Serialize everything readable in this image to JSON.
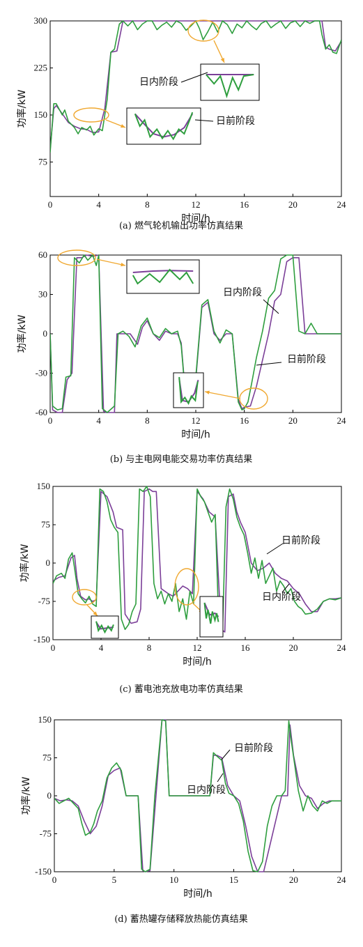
{
  "colors": {
    "day_ahead": "#7b3f98",
    "intraday": "#2e9e3e",
    "highlight": "#f0a830",
    "frame": "#000000"
  },
  "chart_data": [
    {
      "type": "line",
      "caption": "(a) 燃气轮机输出功率仿真结果",
      "xlabel": "时间/h",
      "ylabel": "功率/kW",
      "xlim": [
        0,
        24
      ],
      "ylim": [
        20,
        300
      ],
      "xticks": [
        "0",
        "4",
        "8",
        "12",
        "16",
        "20",
        "24"
      ],
      "yticks": [
        "75",
        "150",
        "225",
        "300"
      ],
      "annotations": {
        "intraday": "日内阶段",
        "day_ahead": "日前阶段"
      },
      "series": [
        {
          "key": "day_ahead",
          "x": [
            0,
            0.3,
            0.5,
            1,
            1.5,
            2,
            2.5,
            3,
            3.5,
            4,
            4.5,
            5,
            5.5,
            6,
            7,
            8,
            9,
            10,
            11,
            12,
            13,
            14,
            15,
            16,
            17,
            18,
            19,
            20,
            21,
            22,
            22.4,
            22.7,
            23,
            23.5,
            24
          ],
          "y": [
            95,
            160,
            165,
            152,
            138,
            132,
            128,
            127,
            122,
            123,
            160,
            250,
            252,
            300,
            300,
            300,
            300,
            300,
            300,
            300,
            300,
            300,
            300,
            300,
            300,
            300,
            300,
            300,
            300,
            300,
            300,
            258,
            255,
            252,
            268
          ]
        },
        {
          "key": "intraday",
          "x": [
            0,
            0.3,
            0.5,
            1,
            1.2,
            1.5,
            2,
            2.3,
            2.6,
            3,
            3.3,
            3.6,
            4,
            4.3,
            4.7,
            5,
            5.3,
            5.7,
            6,
            6.4,
            6.8,
            7.2,
            7.6,
            8,
            8.4,
            8.8,
            9.2,
            9.6,
            10,
            10.4,
            10.8,
            11.2,
            11.6,
            12,
            12.3,
            12.6,
            13,
            13.4,
            13.8,
            14.2,
            14.6,
            15,
            15.4,
            15.8,
            16.2,
            16.6,
            17,
            17.4,
            17.8,
            18.2,
            18.6,
            19,
            19.4,
            19.8,
            20.2,
            20.6,
            21,
            21.4,
            21.8,
            22.2,
            22.4,
            22.7,
            23,
            23.3,
            23.6,
            24
          ],
          "y": [
            90,
            168,
            168,
            150,
            158,
            140,
            130,
            120,
            130,
            126,
            132,
            118,
            128,
            125,
            175,
            250,
            255,
            295,
            300,
            292,
            300,
            286,
            295,
            300,
            300,
            286,
            293,
            298,
            290,
            300,
            296,
            285,
            292,
            300,
            288,
            270,
            283,
            298,
            282,
            300,
            294,
            280,
            295,
            289,
            300,
            292,
            286,
            296,
            300,
            289,
            295,
            300,
            288,
            297,
            300,
            291,
            300,
            296,
            300,
            300,
            278,
            255,
            262,
            250,
            248,
            270
          ]
        }
      ]
    },
    {
      "type": "line",
      "caption": "(b) 与主电网电能交易功率仿真结果",
      "xlabel": "时间/h",
      "ylabel": "功率/kW",
      "xlim": [
        0,
        24
      ],
      "ylim": [
        -60,
        60
      ],
      "xticks": [
        "0",
        "4",
        "8",
        "12",
        "16",
        "20",
        "24"
      ],
      "yticks": [
        "-60",
        "-30",
        "0",
        "30",
        "60"
      ],
      "annotations": {
        "intraday": "日内阶段",
        "day_ahead": "日前阶段"
      },
      "series": [
        {
          "key": "day_ahead",
          "x": [
            0,
            0.2,
            0.6,
            1,
            1.4,
            1.8,
            2.2,
            2.6,
            3,
            3.5,
            4,
            4.4,
            4.6,
            5.3,
            5.5,
            6,
            6.6,
            7.2,
            7.6,
            8,
            8.5,
            9,
            9.5,
            10,
            10.5,
            10.8,
            11,
            11.3,
            11.6,
            12,
            12.5,
            13,
            13.5,
            14,
            14.5,
            15,
            15.5,
            15.8,
            16,
            16.5,
            17,
            17.5,
            18,
            18.5,
            19,
            19.5,
            20,
            20.5,
            21,
            21.5,
            22,
            22.5,
            23,
            24
          ],
          "y": [
            0,
            -58,
            -60,
            -60,
            -35,
            -30,
            58,
            58,
            60,
            59,
            60,
            -59,
            -60,
            -60,
            0,
            0,
            0,
            -8,
            5,
            10,
            0,
            -5,
            2,
            0,
            0,
            -7,
            -30,
            -50,
            -52,
            -35,
            20,
            24,
            0,
            -5,
            0,
            0,
            -50,
            -57,
            -56,
            -55,
            -40,
            -20,
            0,
            25,
            30,
            55,
            58,
            58,
            0,
            0,
            0,
            0,
            0,
            0
          ]
        },
        {
          "key": "intraday",
          "x": [
            0,
            0.2,
            0.6,
            1,
            1.3,
            1.7,
            2,
            2.4,
            2.8,
            3.1,
            3.5,
            3.8,
            4,
            4.3,
            4.7,
            5.3,
            5.6,
            6,
            6.5,
            7,
            7.5,
            8,
            8.5,
            9,
            9.5,
            10,
            10.5,
            10.8,
            11,
            11.3,
            11.7,
            12,
            12.5,
            13,
            13.5,
            14,
            14.5,
            15,
            15.5,
            15.8,
            16,
            16.3,
            16.6,
            17,
            17.5,
            18,
            18.5,
            19,
            19.5,
            20,
            20.5,
            21,
            21.5,
            22,
            22.5,
            23,
            24
          ],
          "y": [
            0,
            -55,
            -58,
            -57,
            -33,
            -32,
            58,
            54,
            60,
            56,
            60,
            52,
            60,
            -57,
            -60,
            -55,
            0,
            2,
            -2,
            -10,
            6,
            12,
            0,
            -3,
            4,
            0,
            2,
            -9,
            -31,
            -52,
            -54,
            -33,
            22,
            26,
            2,
            -7,
            3,
            0,
            -52,
            -58,
            -57,
            -52,
            -38,
            -18,
            2,
            27,
            33,
            57,
            60,
            60,
            2,
            0,
            8,
            0,
            0,
            0,
            0
          ]
        }
      ]
    },
    {
      "type": "line",
      "caption": "(c) 蓄电池充放电功率仿真结果",
      "xlabel": "时间/h",
      "ylabel": "功率/kW",
      "xlim": [
        0,
        24
      ],
      "ylim": [
        -150,
        150
      ],
      "xticks": [
        "0",
        "4",
        "8",
        "12",
        "16",
        "20",
        "24"
      ],
      "yticks": [
        "-150",
        "-75",
        "0",
        "75",
        "150"
      ],
      "annotations": {
        "day_ahead": "日前阶段",
        "intraday": "日内阶段"
      },
      "series": [
        {
          "key": "day_ahead",
          "x": [
            0,
            0.5,
            1,
            1.5,
            1.8,
            2,
            2.3,
            2.7,
            3,
            3.3,
            3.6,
            4,
            4.5,
            5,
            5.3,
            5.8,
            6,
            6.5,
            7,
            7.3,
            7.6,
            8,
            8.3,
            8.6,
            9,
            9.3,
            9.6,
            10,
            10.4,
            10.8,
            11.2,
            11.6,
            12,
            12.5,
            13,
            13.5,
            14,
            14.3,
            14.6,
            15,
            15.3,
            15.6,
            16,
            16.5,
            17,
            17.5,
            18,
            18.5,
            19,
            19.5,
            20,
            20.5,
            21,
            21.5,
            22,
            22.5,
            23,
            23.5,
            24
          ],
          "y": [
            -35,
            -28,
            -25,
            10,
            15,
            -30,
            -65,
            -72,
            -70,
            -75,
            -72,
            140,
            130,
            100,
            70,
            65,
            -100,
            -118,
            -115,
            -90,
            140,
            145,
            140,
            140,
            -50,
            -55,
            -60,
            -65,
            -55,
            -45,
            -50,
            -60,
            140,
            125,
            100,
            90,
            -130,
            -135,
            130,
            135,
            100,
            80,
            60,
            0,
            -15,
            -10,
            0,
            -20,
            -30,
            -35,
            -50,
            -60,
            -80,
            -95,
            -95,
            -75,
            -70,
            -70,
            -68
          ]
        },
        {
          "key": "intraday",
          "x": [
            0,
            0.3,
            0.7,
            1,
            1.3,
            1.6,
            1.8,
            2.1,
            2.4,
            2.7,
            3,
            3.3,
            3.6,
            3.9,
            4.2,
            4.5,
            4.8,
            5.1,
            5.4,
            5.7,
            6,
            6.3,
            6.6,
            6.9,
            7.2,
            7.5,
            7.8,
            8.1,
            8.4,
            8.7,
            9,
            9.3,
            9.6,
            9.9,
            10.2,
            10.5,
            10.8,
            11.1,
            11.4,
            11.7,
            12,
            12.3,
            12.6,
            12.9,
            13.2,
            13.5,
            13.8,
            14.1,
            14.4,
            14.7,
            15,
            15.3,
            15.6,
            15.9,
            16.2,
            16.5,
            16.8,
            17.1,
            17.4,
            17.7,
            18,
            18.3,
            18.6,
            18.9,
            19.2,
            19.5,
            19.8,
            20.1,
            20.4,
            20.7,
            21,
            21.5,
            22,
            22.5,
            23,
            23.5,
            24
          ],
          "y": [
            -40,
            -25,
            -20,
            -30,
            8,
            20,
            -10,
            -60,
            -70,
            -78,
            -65,
            -80,
            -85,
            145,
            140,
            120,
            85,
            70,
            60,
            -110,
            -130,
            -120,
            -95,
            -80,
            145,
            140,
            150,
            130,
            -40,
            -70,
            -55,
            -80,
            -60,
            -75,
            -40,
            -95,
            -70,
            -110,
            -55,
            -80,
            145,
            130,
            120,
            100,
            80,
            95,
            -125,
            -140,
            110,
            145,
            125,
            90,
            70,
            55,
            20,
            -20,
            10,
            -30,
            5,
            -40,
            -25,
            -10,
            -55,
            -35,
            -45,
            -60,
            -50,
            -75,
            -85,
            -90,
            -100,
            -98,
            -90,
            -75,
            -70,
            -72,
            -68
          ]
        }
      ]
    },
    {
      "type": "line",
      "caption": "(d) 蓄热罐存储释放热能仿真结果",
      "xlabel": "时间/h",
      "ylabel": "功率/kW",
      "xlim": [
        0,
        24
      ],
      "ylim": [
        -150,
        150
      ],
      "xticks": [
        "0",
        "5",
        "10",
        "15",
        "20",
        "24"
      ],
      "yticks": [
        "-150",
        "-75",
        "0",
        "75",
        "150"
      ],
      "annotations": {
        "day_ahead": "日前阶段",
        "intraday": "日内阶段"
      },
      "series": [
        {
          "key": "day_ahead",
          "x": [
            0,
            0.5,
            1,
            1.5,
            2,
            2.5,
            3,
            3.5,
            4,
            4.5,
            5,
            5.5,
            6,
            6.5,
            7,
            7.4,
            7.6,
            8,
            8.5,
            9,
            9.3,
            9.6,
            10,
            11,
            12,
            13,
            13.3,
            13.6,
            14,
            14.5,
            15,
            15.5,
            16,
            16.5,
            17,
            17.5,
            18,
            18.5,
            19,
            19.5,
            19.7,
            20,
            20.5,
            21,
            21.5,
            22,
            22.5,
            23,
            24
          ],
          "y": [
            -5,
            -10,
            -8,
            -10,
            -20,
            -50,
            -75,
            -60,
            -20,
            40,
            50,
            55,
            0,
            0,
            0,
            -148,
            -150,
            -148,
            0,
            150,
            150,
            0,
            0,
            0,
            0,
            0,
            80,
            80,
            75,
            20,
            0,
            -10,
            -60,
            -120,
            -150,
            -150,
            -100,
            -50,
            0,
            0,
            140,
            80,
            20,
            0,
            -5,
            -25,
            -15,
            -10,
            -10
          ]
        },
        {
          "key": "intraday",
          "x": [
            0,
            0.4,
            0.8,
            1.2,
            1.6,
            2,
            2.3,
            2.6,
            3,
            3.3,
            3.6,
            4,
            4.4,
            4.8,
            5.2,
            5.6,
            6,
            6.4,
            7,
            7.3,
            7.6,
            8,
            8.4,
            9,
            9.3,
            9.6,
            10,
            11,
            12,
            13,
            13.3,
            13.6,
            14,
            14.3,
            14.6,
            15,
            15.4,
            15.8,
            16.2,
            16.6,
            17,
            17.4,
            17.8,
            18.2,
            18.6,
            19,
            19.3,
            19.6,
            19.8,
            20.1,
            20.4,
            20.8,
            21.2,
            21.6,
            22,
            22.4,
            22.8,
            23.2,
            24
          ],
          "y": [
            -5,
            -15,
            -10,
            -5,
            -15,
            -25,
            -55,
            -78,
            -72,
            -55,
            -30,
            -10,
            35,
            55,
            65,
            50,
            0,
            0,
            0,
            -145,
            -150,
            -145,
            0,
            150,
            148,
            0,
            0,
            0,
            0,
            0,
            85,
            78,
            70,
            25,
            5,
            0,
            -15,
            -50,
            -110,
            -148,
            -150,
            -130,
            -60,
            -20,
            0,
            0,
            10,
            148,
            110,
            60,
            10,
            -30,
            0,
            -20,
            -30,
            -10,
            -15,
            -10,
            -10
          ]
        }
      ]
    }
  ]
}
